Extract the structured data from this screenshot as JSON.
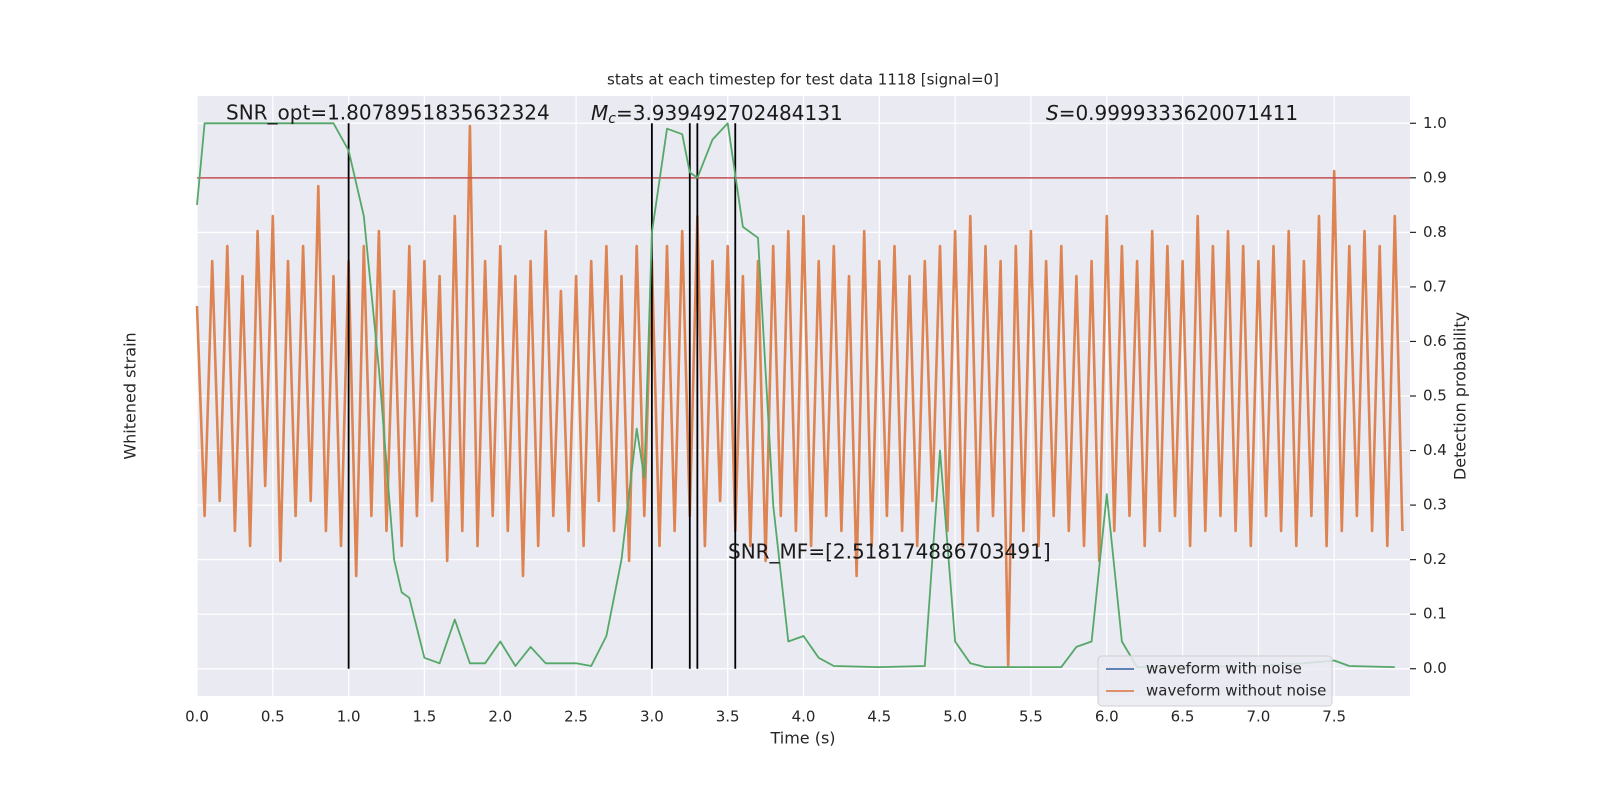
{
  "chart_data": {
    "type": "line",
    "title": "stats at each timestep for test data 1118 [signal=0]",
    "xlabel": "Time (s)",
    "ylabel": "Whitened strain",
    "y2label": "Detection probability",
    "annotations": {
      "snr_opt": "SNR_opt=1.8078951835632324",
      "chirp_mass": {
        "symbol": "M",
        "subscript": "c",
        "value": "=3.939492702484131"
      },
      "s": {
        "symbol": "S",
        "value": "=0.9999333620071411"
      },
      "snr_mf": "SNR_MF=[2.518174886703491]"
    },
    "xlim": [
      0,
      8
    ],
    "ylim": [
      -1,
      1
    ],
    "y2lim": [
      -0.05,
      1.05
    ],
    "xticks": [
      {
        "value": 0,
        "label": "0.0"
      },
      {
        "value": 0.5,
        "label": "0.5"
      },
      {
        "value": 1,
        "label": "1.0"
      },
      {
        "value": 1.5,
        "label": "1.5"
      },
      {
        "value": 2,
        "label": "2.0"
      },
      {
        "value": 2.5,
        "label": "2.5"
      },
      {
        "value": 3,
        "label": "3.0"
      },
      {
        "value": 3.5,
        "label": "3.5"
      },
      {
        "value": 4,
        "label": "4.0"
      },
      {
        "value": 4.5,
        "label": "4.5"
      },
      {
        "value": 5,
        "label": "5.0"
      },
      {
        "value": 5.5,
        "label": "5.5"
      },
      {
        "value": 6,
        "label": "6.0"
      },
      {
        "value": 6.5,
        "label": "6.5"
      },
      {
        "value": 7,
        "label": "7.0"
      },
      {
        "value": 7.5,
        "label": "7.5"
      }
    ],
    "y2ticks": [
      {
        "value": 0,
        "label": "0.0"
      },
      0.1,
      0.2,
      0.3,
      0.4,
      0.5,
      0.6,
      0.7,
      0.8,
      0.9,
      {
        "value": 1,
        "label": "1.0"
      }
    ],
    "grid": true,
    "legend": "lower right",
    "series": [
      {
        "name": "waveform with noise",
        "color": "#4c72b0",
        "x": [],
        "values": []
      },
      {
        "name": "waveform without noise",
        "color": "#dd8452",
        "x": [
          0,
          0.05,
          0.1,
          0.15,
          0.2,
          0.25,
          0.3,
          0.35,
          0.4,
          0.45,
          0.5,
          0.55,
          0.6,
          0.65,
          0.7,
          0.75,
          0.8,
          0.85,
          0.9,
          0.95,
          1,
          1.05,
          1.1,
          1.15,
          1.2,
          1.25,
          1.3,
          1.35,
          1.4,
          1.45,
          1.5,
          1.55,
          1.6,
          1.65,
          1.7,
          1.75,
          1.8,
          1.85,
          1.9,
          1.95,
          2,
          2.05,
          2.1,
          2.15,
          2.2,
          2.25,
          2.3,
          2.35,
          2.4,
          2.45,
          2.5,
          2.55,
          2.6,
          2.65,
          2.7,
          2.75,
          2.8,
          2.85,
          2.9,
          2.95,
          3,
          3.05,
          3.1,
          3.15,
          3.2,
          3.25,
          3.3,
          3.35,
          3.4,
          3.45,
          3.5,
          3.55,
          3.6,
          3.65,
          3.7,
          3.75,
          3.8,
          3.85,
          3.9,
          3.95,
          4,
          4.05,
          4.1,
          4.15,
          4.2,
          4.25,
          4.3,
          4.35,
          4.4,
          4.45,
          4.5,
          4.55,
          4.6,
          4.65,
          4.7,
          4.75,
          4.8,
          4.85,
          4.9,
          4.95,
          5,
          5.05,
          5.1,
          5.15,
          5.2,
          5.25,
          5.3,
          5.35,
          5.4,
          5.45,
          5.5,
          5.55,
          5.6,
          5.65,
          5.7,
          5.75,
          5.8,
          5.85,
          5.9,
          5.95,
          6,
          6.05,
          6.1,
          6.15,
          6.2,
          6.25,
          6.3,
          6.35,
          6.4,
          6.45,
          6.5,
          6.55,
          6.6,
          6.65,
          6.7,
          6.75,
          6.8,
          6.85,
          6.9,
          6.95,
          7,
          7.05,
          7.1,
          7.15,
          7.2,
          7.25,
          7.3,
          7.35,
          7.4,
          7.45,
          7.5,
          7.55,
          7.6,
          7.65,
          7.7,
          7.75,
          7.8,
          7.85,
          7.9,
          7.95
        ],
        "values": [
          0.3,
          -0.4,
          0.45,
          -0.35,
          0.5,
          -0.45,
          0.4,
          -0.5,
          0.55,
          -0.3,
          0.6,
          -0.55,
          0.45,
          -0.4,
          0.5,
          -0.35,
          0.7,
          -0.45,
          0.4,
          -0.5,
          0.45,
          -0.6,
          0.5,
          -0.4,
          0.55,
          -0.45,
          0.35,
          -0.5,
          0.5,
          -0.4,
          0.45,
          -0.35,
          0.4,
          -0.55,
          0.6,
          -0.45,
          0.9,
          -0.5,
          0.45,
          -0.4,
          0.5,
          -0.45,
          0.4,
          -0.6,
          0.45,
          -0.5,
          0.55,
          -0.4,
          0.35,
          -0.45,
          0.4,
          -0.5,
          0.45,
          -0.35,
          0.5,
          -0.45,
          0.4,
          -0.55,
          0.5,
          -0.4,
          0.45,
          -0.5,
          0.5,
          -0.45,
          0.55,
          -0.4,
          0.6,
          -0.5,
          0.45,
          -0.35,
          0.5,
          -0.45,
          0.4,
          -0.5,
          0.45,
          -0.55,
          0.5,
          -0.4,
          0.55,
          -0.45,
          0.6,
          -0.5,
          0.45,
          -0.4,
          0.5,
          -0.45,
          0.4,
          -0.6,
          0.55,
          -0.5,
          0.45,
          -0.4,
          0.5,
          -0.45,
          0.4,
          -0.5,
          0.45,
          -0.35,
          0.5,
          -0.45,
          0.55,
          -0.5,
          0.6,
          -0.45,
          0.5,
          -0.4,
          0.45,
          -0.9,
          0.5,
          -0.45,
          0.55,
          -0.5,
          0.45,
          -0.4,
          0.5,
          -0.45,
          0.4,
          -0.5,
          0.45,
          -0.55,
          0.6,
          -0.45,
          0.5,
          -0.4,
          0.45,
          -0.5,
          0.55,
          -0.45,
          0.5,
          -0.4,
          0.45,
          -0.5,
          0.6,
          -0.45,
          0.5,
          -0.4,
          0.55,
          -0.45,
          0.5,
          -0.5,
          0.45,
          -0.4,
          0.5,
          -0.45,
          0.55,
          -0.5,
          0.45,
          -0.4,
          0.6,
          -0.5,
          0.75,
          -0.45,
          0.5,
          -0.4,
          0.55,
          -0.45,
          0.5,
          -0.5,
          0.6,
          -0.45
        ]
      },
      {
        "color": "#55a868",
        "axis": "y2",
        "x": [
          0,
          0.05,
          0.1,
          0.3,
          0.5,
          0.7,
          0.9,
          1,
          1.1,
          1.2,
          1.3,
          1.35,
          1.4,
          1.5,
          1.6,
          1.7,
          1.8,
          1.9,
          2,
          2.1,
          2.2,
          2.3,
          2.4,
          2.5,
          2.6,
          2.7,
          2.8,
          2.9,
          2.95,
          3,
          3.1,
          3.2,
          3.25,
          3.3,
          3.4,
          3.5,
          3.6,
          3.7,
          3.8,
          3.9,
          4,
          4.1,
          4.2,
          4.5,
          4.8,
          4.9,
          5,
          5.1,
          5.2,
          5.5,
          5.7,
          5.8,
          5.9,
          6,
          6.1,
          6.2,
          6.5,
          7,
          7.3,
          7.5,
          7.6,
          7.9
        ],
        "values": [
          0.85,
          1,
          1,
          1,
          1,
          1,
          1,
          0.95,
          0.83,
          0.55,
          0.2,
          0.14,
          0.13,
          0.02,
          0.01,
          0.09,
          0.01,
          0.01,
          0.05,
          0.005,
          0.04,
          0.01,
          0.01,
          0.01,
          0.005,
          0.06,
          0.2,
          0.44,
          0.35,
          0.8,
          0.99,
          0.98,
          0.91,
          0.9,
          0.97,
          1,
          0.81,
          0.79,
          0.3,
          0.05,
          0.06,
          0.02,
          0.005,
          0.003,
          0.005,
          0.4,
          0.05,
          0.01,
          0.003,
          0.003,
          0.003,
          0.04,
          0.05,
          0.32,
          0.05,
          0.003,
          0.003,
          0.005,
          0.01,
          0.015,
          0.005,
          0.003
        ]
      }
    ],
    "hlines": [
      {
        "value": 0.9,
        "color": "#c44e52",
        "axis": "y2"
      }
    ],
    "vlines": {
      "values": [
        1,
        3,
        3.25,
        3.3,
        3.55
      ],
      "ymin": 0,
      "ymax": 1,
      "color": "#000000",
      "axis": "y2"
    }
  }
}
